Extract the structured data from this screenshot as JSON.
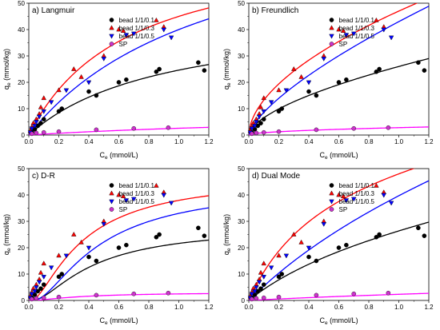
{
  "colors": {
    "bead_0_1": "#000000",
    "bead_0_3": "#ff0000",
    "bead_0_5": "#0000ff",
    "sp": "#ff00ff",
    "sp_marker": "#cc33cc"
  },
  "chart_data": [
    {
      "type": "scatter",
      "title": "a) Langmuir",
      "xlabel_main": "C",
      "xlabel_sub": "e",
      "xlabel_unit": " (mmol/L)",
      "ylabel_main": "q",
      "ylabel_sub": "e",
      "ylabel_unit": " (mmol/kg)",
      "xlim": [
        0,
        1.2
      ],
      "ylim": [
        0,
        50
      ],
      "xticks": [
        "0.0",
        "0.2",
        "0.4",
        "0.6",
        "0.8",
        "1.0",
        "1.2"
      ],
      "yticks": [
        "0",
        "10",
        "20",
        "30",
        "40",
        "50"
      ],
      "legend_position": "top-right",
      "series": [
        {
          "name": "bead 1/1/0.1",
          "marker": "circle",
          "x": [
            0.02,
            0.04,
            0.06,
            0.08,
            0.1,
            0.2,
            0.22,
            0.4,
            0.45,
            0.6,
            0.65,
            0.85,
            0.87,
            1.13,
            1.17
          ],
          "y": [
            1.0,
            2.2,
            3.5,
            4.5,
            6.0,
            9.0,
            10.0,
            16.5,
            15.0,
            20.0,
            21.0,
            24.0,
            25.0,
            27.5,
            24.5
          ]
        },
        {
          "name": "bead 1/1/0.3",
          "marker": "triangle-up",
          "x": [
            0.01,
            0.02,
            0.03,
            0.05,
            0.07,
            0.08,
            0.1,
            0.2,
            0.3,
            0.35,
            0.5,
            0.6,
            0.63,
            0.85,
            0.9
          ],
          "y": [
            1.5,
            3.0,
            4.5,
            6.0,
            8.0,
            10.5,
            14.0,
            17.0,
            25.0,
            22.0,
            30.0,
            40.0,
            39.5,
            43.5,
            41.0
          ]
        },
        {
          "name": "bead 1/1/0.5",
          "marker": "triangle-down",
          "x": [
            0.01,
            0.02,
            0.04,
            0.05,
            0.07,
            0.1,
            0.15,
            0.25,
            0.4,
            0.5,
            0.65,
            0.7,
            0.9,
            0.95
          ],
          "y": [
            1.0,
            2.5,
            3.5,
            5.0,
            7.0,
            9.0,
            12.5,
            17.0,
            20.0,
            29.0,
            38.0,
            38.5,
            40.0,
            37.0
          ]
        },
        {
          "name": "SP",
          "marker": "circle",
          "x": [
            0.02,
            0.05,
            0.1,
            0.2,
            0.45,
            0.7,
            0.93
          ],
          "y": [
            0.5,
            0.8,
            1.0,
            1.3,
            2.0,
            2.5,
            2.8
          ]
        }
      ],
      "fits": [
        {
          "series": "bead 1/1/0.1",
          "model": "langmuir",
          "qmax": 47.0,
          "k": 1.1
        },
        {
          "series": "bead 1/1/0.3",
          "model": "langmuir",
          "qmax": 75.0,
          "k": 1.5
        },
        {
          "series": "bead 1/1/0.5",
          "model": "langmuir",
          "qmax": 90.0,
          "k": 0.8
        },
        {
          "series": "SP",
          "model": "langmuir",
          "qmax": 9.0,
          "k": 0.4
        }
      ]
    },
    {
      "type": "scatter",
      "title": "b) Freundlich",
      "xlabel_main": "C",
      "xlabel_sub": "e",
      "xlabel_unit": " (mmol/L)",
      "ylabel_main": "q",
      "ylabel_sub": "e",
      "ylabel_unit": " (mmol/kg)",
      "xlim": [
        0,
        1.2
      ],
      "ylim": [
        0,
        50
      ],
      "xticks": [
        "0.0",
        "0.2",
        "0.4",
        "0.6",
        "0.8",
        "1.0",
        "1.2"
      ],
      "yticks": [
        "0",
        "10",
        "20",
        "30",
        "40",
        "50"
      ],
      "legend_position": "top-right",
      "series": [
        {
          "name": "bead 1/1/0.1",
          "marker": "circle",
          "x": [
            0.02,
            0.04,
            0.06,
            0.08,
            0.1,
            0.2,
            0.22,
            0.4,
            0.45,
            0.6,
            0.65,
            0.85,
            0.87,
            1.13,
            1.17
          ],
          "y": [
            1.0,
            2.2,
            3.5,
            4.5,
            6.0,
            9.0,
            10.0,
            16.5,
            15.0,
            20.0,
            21.0,
            24.0,
            25.0,
            27.5,
            24.5
          ]
        },
        {
          "name": "bead 1/1/0.3",
          "marker": "triangle-up",
          "x": [
            0.01,
            0.02,
            0.03,
            0.05,
            0.07,
            0.08,
            0.1,
            0.2,
            0.3,
            0.35,
            0.5,
            0.6,
            0.63,
            0.85,
            0.9
          ],
          "y": [
            1.5,
            3.0,
            4.5,
            6.0,
            8.0,
            10.5,
            14.0,
            17.0,
            25.0,
            22.0,
            30.0,
            40.0,
            39.5,
            43.5,
            41.0
          ]
        },
        {
          "name": "bead 1/1/0.5",
          "marker": "triangle-down",
          "x": [
            0.01,
            0.02,
            0.04,
            0.05,
            0.07,
            0.1,
            0.15,
            0.25,
            0.4,
            0.5,
            0.65,
            0.7,
            0.9,
            0.95
          ],
          "y": [
            1.0,
            2.5,
            3.5,
            5.0,
            7.0,
            9.0,
            12.5,
            17.0,
            20.0,
            29.0,
            38.0,
            38.5,
            40.0,
            37.0
          ]
        },
        {
          "name": "SP",
          "marker": "circle",
          "x": [
            0.02,
            0.05,
            0.1,
            0.2,
            0.45,
            0.7,
            0.93
          ],
          "y": [
            0.5,
            0.8,
            1.0,
            1.3,
            2.0,
            2.5,
            2.8
          ]
        }
      ],
      "fits": [
        {
          "series": "bead 1/1/0.1",
          "model": "freundlich",
          "kf": 26.0,
          "n": 0.6
        },
        {
          "series": "bead 1/1/0.3",
          "model": "freundlich",
          "kf": 47.0,
          "n": 0.55
        },
        {
          "series": "bead 1/1/0.5",
          "model": "freundlich",
          "kf": 43.0,
          "n": 0.7
        },
        {
          "series": "SP",
          "model": "freundlich",
          "kf": 2.8,
          "n": 0.5
        }
      ]
    },
    {
      "type": "scatter",
      "title": "c) D-R",
      "xlabel_main": "C",
      "xlabel_sub": "e",
      "xlabel_unit": " (mmol/L)",
      "ylabel_main": "q",
      "ylabel_sub": "e",
      "ylabel_unit": " (mmol/kg)",
      "xlim": [
        0,
        1.2
      ],
      "ylim": [
        0,
        50
      ],
      "xticks": [
        "0.0",
        "0.2",
        "0.4",
        "0.6",
        "0.8",
        "1.0",
        "1.2"
      ],
      "yticks": [
        "0",
        "10",
        "20",
        "30",
        "40",
        "50"
      ],
      "legend_position": "top-right",
      "series": [
        {
          "name": "bead 1/1/0.1",
          "marker": "circle",
          "x": [
            0.02,
            0.04,
            0.06,
            0.08,
            0.1,
            0.2,
            0.22,
            0.4,
            0.45,
            0.6,
            0.65,
            0.85,
            0.87,
            1.13,
            1.17
          ],
          "y": [
            1.0,
            2.2,
            3.5,
            4.5,
            6.0,
            9.0,
            10.0,
            16.5,
            15.0,
            20.0,
            21.0,
            24.0,
            25.0,
            27.5,
            24.5
          ]
        },
        {
          "name": "bead 1/1/0.3",
          "marker": "triangle-up",
          "x": [
            0.01,
            0.02,
            0.03,
            0.05,
            0.07,
            0.08,
            0.1,
            0.2,
            0.3,
            0.35,
            0.5,
            0.6,
            0.63,
            0.85,
            0.9
          ],
          "y": [
            1.5,
            3.0,
            4.5,
            6.0,
            8.0,
            10.5,
            14.0,
            17.0,
            25.0,
            22.0,
            30.0,
            40.0,
            39.5,
            43.5,
            41.0
          ]
        },
        {
          "name": "bead 1/1/0.5",
          "marker": "triangle-down",
          "x": [
            0.01,
            0.02,
            0.04,
            0.05,
            0.07,
            0.1,
            0.15,
            0.25,
            0.4,
            0.5,
            0.65,
            0.7,
            0.9,
            0.95
          ],
          "y": [
            1.0,
            2.5,
            3.5,
            5.0,
            7.0,
            9.0,
            12.5,
            17.0,
            20.0,
            29.0,
            38.0,
            38.5,
            40.0,
            37.0
          ]
        },
        {
          "name": "SP",
          "marker": "circle",
          "x": [
            0.02,
            0.05,
            0.1,
            0.2,
            0.45,
            0.7,
            0.93
          ],
          "y": [
            0.5,
            0.8,
            1.0,
            1.3,
            2.0,
            2.5,
            2.8
          ]
        }
      ],
      "fits": [
        {
          "series": "bead 1/1/0.1",
          "model": "dubinin-radushkevich",
          "qmax": 27.5,
          "b": 0.05
        },
        {
          "series": "bead 1/1/0.3",
          "model": "dubinin-radushkevich",
          "qmax": 46.0,
          "b": 0.04
        },
        {
          "series": "bead 1/1/0.5",
          "model": "dubinin-radushkevich",
          "qmax": 43.0,
          "b": 0.055
        },
        {
          "series": "SP",
          "model": "dubinin-radushkevich",
          "qmax": 3.0,
          "b": 0.04
        }
      ]
    },
    {
      "type": "scatter",
      "title": "d) Dual Mode",
      "xlabel_main": "C",
      "xlabel_sub": "e",
      "xlabel_unit": " (mmol/L)",
      "ylabel_main": "q",
      "ylabel_sub": "e",
      "ylabel_unit": " (mmol/kg)",
      "xlim": [
        0,
        1.2
      ],
      "ylim": [
        0,
        50
      ],
      "xticks": [
        "0.0",
        "0.2",
        "0.4",
        "0.6",
        "0.8",
        "1.0",
        "1.2"
      ],
      "yticks": [
        "0",
        "10",
        "20",
        "30",
        "40",
        "50"
      ],
      "legend_position": "top-right",
      "series": [
        {
          "name": "bead 1/1/0.1",
          "marker": "circle",
          "x": [
            0.02,
            0.04,
            0.06,
            0.08,
            0.1,
            0.2,
            0.22,
            0.4,
            0.45,
            0.6,
            0.65,
            0.85,
            0.87,
            1.13,
            1.17
          ],
          "y": [
            1.0,
            2.2,
            3.5,
            4.5,
            6.0,
            9.0,
            10.0,
            16.5,
            15.0,
            20.0,
            21.0,
            24.0,
            25.0,
            27.5,
            24.5
          ]
        },
        {
          "name": "bead 1/1/0.3",
          "marker": "triangle-up",
          "x": [
            0.01,
            0.02,
            0.03,
            0.05,
            0.07,
            0.08,
            0.1,
            0.2,
            0.3,
            0.35,
            0.5,
            0.6,
            0.63,
            0.85,
            0.9
          ],
          "y": [
            1.5,
            3.0,
            4.5,
            6.0,
            8.0,
            10.5,
            14.0,
            17.0,
            25.0,
            22.0,
            30.0,
            40.0,
            39.5,
            43.5,
            41.0
          ]
        },
        {
          "name": "bead 1/1/0.5",
          "marker": "triangle-down",
          "x": [
            0.01,
            0.02,
            0.04,
            0.05,
            0.07,
            0.1,
            0.15,
            0.25,
            0.4,
            0.5,
            0.65,
            0.7,
            0.9,
            0.95
          ],
          "y": [
            1.0,
            2.5,
            3.5,
            5.0,
            7.0,
            9.0,
            12.5,
            17.0,
            20.0,
            29.0,
            38.0,
            38.5,
            40.0,
            37.0
          ]
        },
        {
          "name": "SP",
          "marker": "circle",
          "x": [
            0.02,
            0.05,
            0.1,
            0.2,
            0.45,
            0.7,
            0.93
          ],
          "y": [
            0.5,
            0.8,
            1.0,
            1.3,
            2.0,
            2.5,
            2.8
          ]
        }
      ],
      "fits": [
        {
          "series": "bead 1/1/0.1",
          "model": "dual-mode",
          "kd": 10.0,
          "qmax": 30.0,
          "b": 1.2
        },
        {
          "series": "bead 1/1/0.3",
          "model": "dual-mode",
          "kd": 8.0,
          "qmax": 60.0,
          "b": 2.0
        },
        {
          "series": "bead 1/1/0.5",
          "model": "dual-mode",
          "kd": 15.0,
          "qmax": 60.0,
          "b": 0.7
        },
        {
          "series": "SP",
          "model": "dual-mode",
          "kd": 1.2,
          "qmax": 3.0,
          "b": 0.6
        }
      ]
    }
  ]
}
